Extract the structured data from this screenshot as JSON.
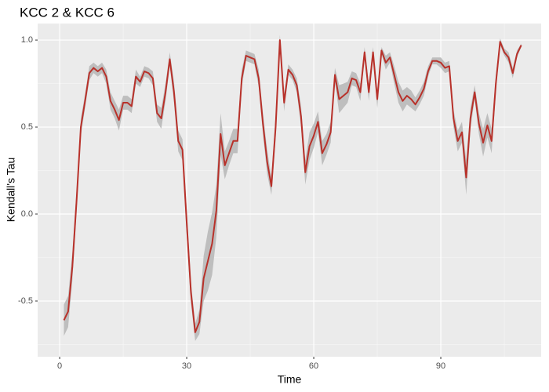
{
  "chart_data": {
    "type": "line",
    "title": "KCC 2 & KCC 6",
    "x_label": "Time",
    "y_label": "Kendall's Tau",
    "x": [
      1,
      2,
      3,
      4,
      5,
      6,
      7,
      8,
      9,
      10,
      11,
      12,
      13,
      14,
      15,
      16,
      17,
      18,
      19,
      20,
      21,
      22,
      23,
      24,
      25,
      26,
      27,
      28,
      29,
      30,
      31,
      32,
      33,
      34,
      35,
      36,
      37,
      38,
      39,
      40,
      41,
      42,
      43,
      44,
      45,
      46,
      47,
      48,
      49,
      50,
      51,
      52,
      53,
      54,
      55,
      56,
      57,
      58,
      59,
      60,
      61,
      62,
      63,
      64,
      65,
      66,
      67,
      68,
      69,
      70,
      71,
      72,
      73,
      74,
      75,
      76,
      77,
      78,
      79,
      80,
      81,
      82,
      83,
      84,
      85,
      86,
      87,
      88,
      89,
      90,
      91,
      92,
      93,
      94,
      95,
      96,
      97,
      98,
      99,
      100,
      101,
      102,
      103,
      104,
      105,
      106,
      107,
      108,
      109
    ],
    "series": [
      {
        "color": "#b8312a",
        "values": [
          -0.61,
          -0.56,
          -0.3,
          0.08,
          0.5,
          0.65,
          0.81,
          0.84,
          0.82,
          0.84,
          0.79,
          0.65,
          0.6,
          0.54,
          0.64,
          0.64,
          0.62,
          0.79,
          0.76,
          0.82,
          0.81,
          0.78,
          0.58,
          0.55,
          0.7,
          0.89,
          0.7,
          0.42,
          0.37,
          -0.05,
          -0.45,
          -0.68,
          -0.62,
          -0.37,
          -0.27,
          -0.17,
          0.02,
          0.46,
          0.28,
          0.35,
          0.42,
          0.42,
          0.78,
          0.91,
          0.9,
          0.89,
          0.78,
          0.52,
          0.3,
          0.16,
          0.5,
          1.0,
          0.64,
          0.83,
          0.8,
          0.74,
          0.56,
          0.24,
          0.39,
          0.45,
          0.53,
          0.35,
          0.4,
          0.47,
          0.8,
          0.66,
          0.68,
          0.7,
          0.78,
          0.77,
          0.7,
          0.93,
          0.7,
          0.93,
          0.66,
          0.94,
          0.87,
          0.9,
          0.8,
          0.7,
          0.65,
          0.68,
          0.66,
          0.63,
          0.67,
          0.72,
          0.82,
          0.88,
          0.88,
          0.87,
          0.84,
          0.85,
          0.55,
          0.42,
          0.47,
          0.21,
          0.55,
          0.7,
          0.52,
          0.41,
          0.51,
          0.42,
          0.75,
          0.99,
          0.93,
          0.9,
          0.81,
          0.92,
          0.97
        ]
      }
    ],
    "ribbon": {
      "color": "#bebebe",
      "upper": [
        -0.52,
        -0.47,
        -0.22,
        0.14,
        0.55,
        0.69,
        0.85,
        0.87,
        0.85,
        0.87,
        0.83,
        0.7,
        0.65,
        0.6,
        0.68,
        0.68,
        0.66,
        0.83,
        0.79,
        0.85,
        0.84,
        0.82,
        0.63,
        0.61,
        0.75,
        0.93,
        0.76,
        0.48,
        0.43,
        0.03,
        -0.39,
        -0.63,
        -0.55,
        -0.24,
        -0.1,
        0.01,
        0.17,
        0.58,
        0.36,
        0.42,
        0.49,
        0.49,
        0.83,
        0.94,
        0.93,
        0.92,
        0.83,
        0.58,
        0.37,
        0.21,
        0.57,
        1.03,
        0.69,
        0.86,
        0.83,
        0.78,
        0.62,
        0.31,
        0.47,
        0.52,
        0.59,
        0.42,
        0.46,
        0.53,
        0.84,
        0.74,
        0.75,
        0.76,
        0.82,
        0.81,
        0.75,
        0.96,
        0.75,
        0.96,
        0.71,
        0.96,
        0.91,
        0.93,
        0.85,
        0.76,
        0.71,
        0.73,
        0.71,
        0.67,
        0.71,
        0.76,
        0.85,
        0.9,
        0.9,
        0.9,
        0.87,
        0.88,
        0.6,
        0.48,
        0.53,
        0.31,
        0.61,
        0.74,
        0.58,
        0.49,
        0.58,
        0.49,
        0.8,
        1.01,
        0.95,
        0.93,
        0.84,
        0.94,
        0.98
      ],
      "lower": [
        -0.7,
        -0.65,
        -0.38,
        0.02,
        0.45,
        0.61,
        0.77,
        0.81,
        0.79,
        0.81,
        0.75,
        0.6,
        0.55,
        0.48,
        0.6,
        0.6,
        0.58,
        0.75,
        0.73,
        0.79,
        0.78,
        0.74,
        0.53,
        0.49,
        0.65,
        0.85,
        0.64,
        0.36,
        0.31,
        -0.13,
        -0.51,
        -0.73,
        -0.69,
        -0.5,
        -0.44,
        -0.35,
        -0.13,
        0.34,
        0.2,
        0.28,
        0.35,
        0.35,
        0.73,
        0.88,
        0.87,
        0.86,
        0.73,
        0.46,
        0.23,
        0.11,
        0.43,
        0.97,
        0.59,
        0.8,
        0.77,
        0.7,
        0.5,
        0.17,
        0.31,
        0.38,
        0.47,
        0.28,
        0.34,
        0.41,
        0.76,
        0.58,
        0.61,
        0.64,
        0.74,
        0.73,
        0.65,
        0.9,
        0.65,
        0.9,
        0.61,
        0.92,
        0.83,
        0.87,
        0.75,
        0.64,
        0.59,
        0.63,
        0.61,
        0.59,
        0.63,
        0.68,
        0.79,
        0.86,
        0.86,
        0.84,
        0.81,
        0.82,
        0.5,
        0.36,
        0.41,
        0.11,
        0.49,
        0.66,
        0.46,
        0.33,
        0.44,
        0.35,
        0.7,
        0.97,
        0.91,
        0.87,
        0.78,
        0.9,
        0.96
      ]
    },
    "xlim": [
      -5.2,
      113.7
    ],
    "ylim": [
      -0.82,
      1.095
    ],
    "xticks": [
      0,
      30,
      60,
      90
    ],
    "yticks": [
      -0.5,
      {
        "value": 0,
        "label": "0.0"
      },
      0.5,
      {
        "value": 1,
        "label": "1.0"
      }
    ],
    "grid": true
  }
}
